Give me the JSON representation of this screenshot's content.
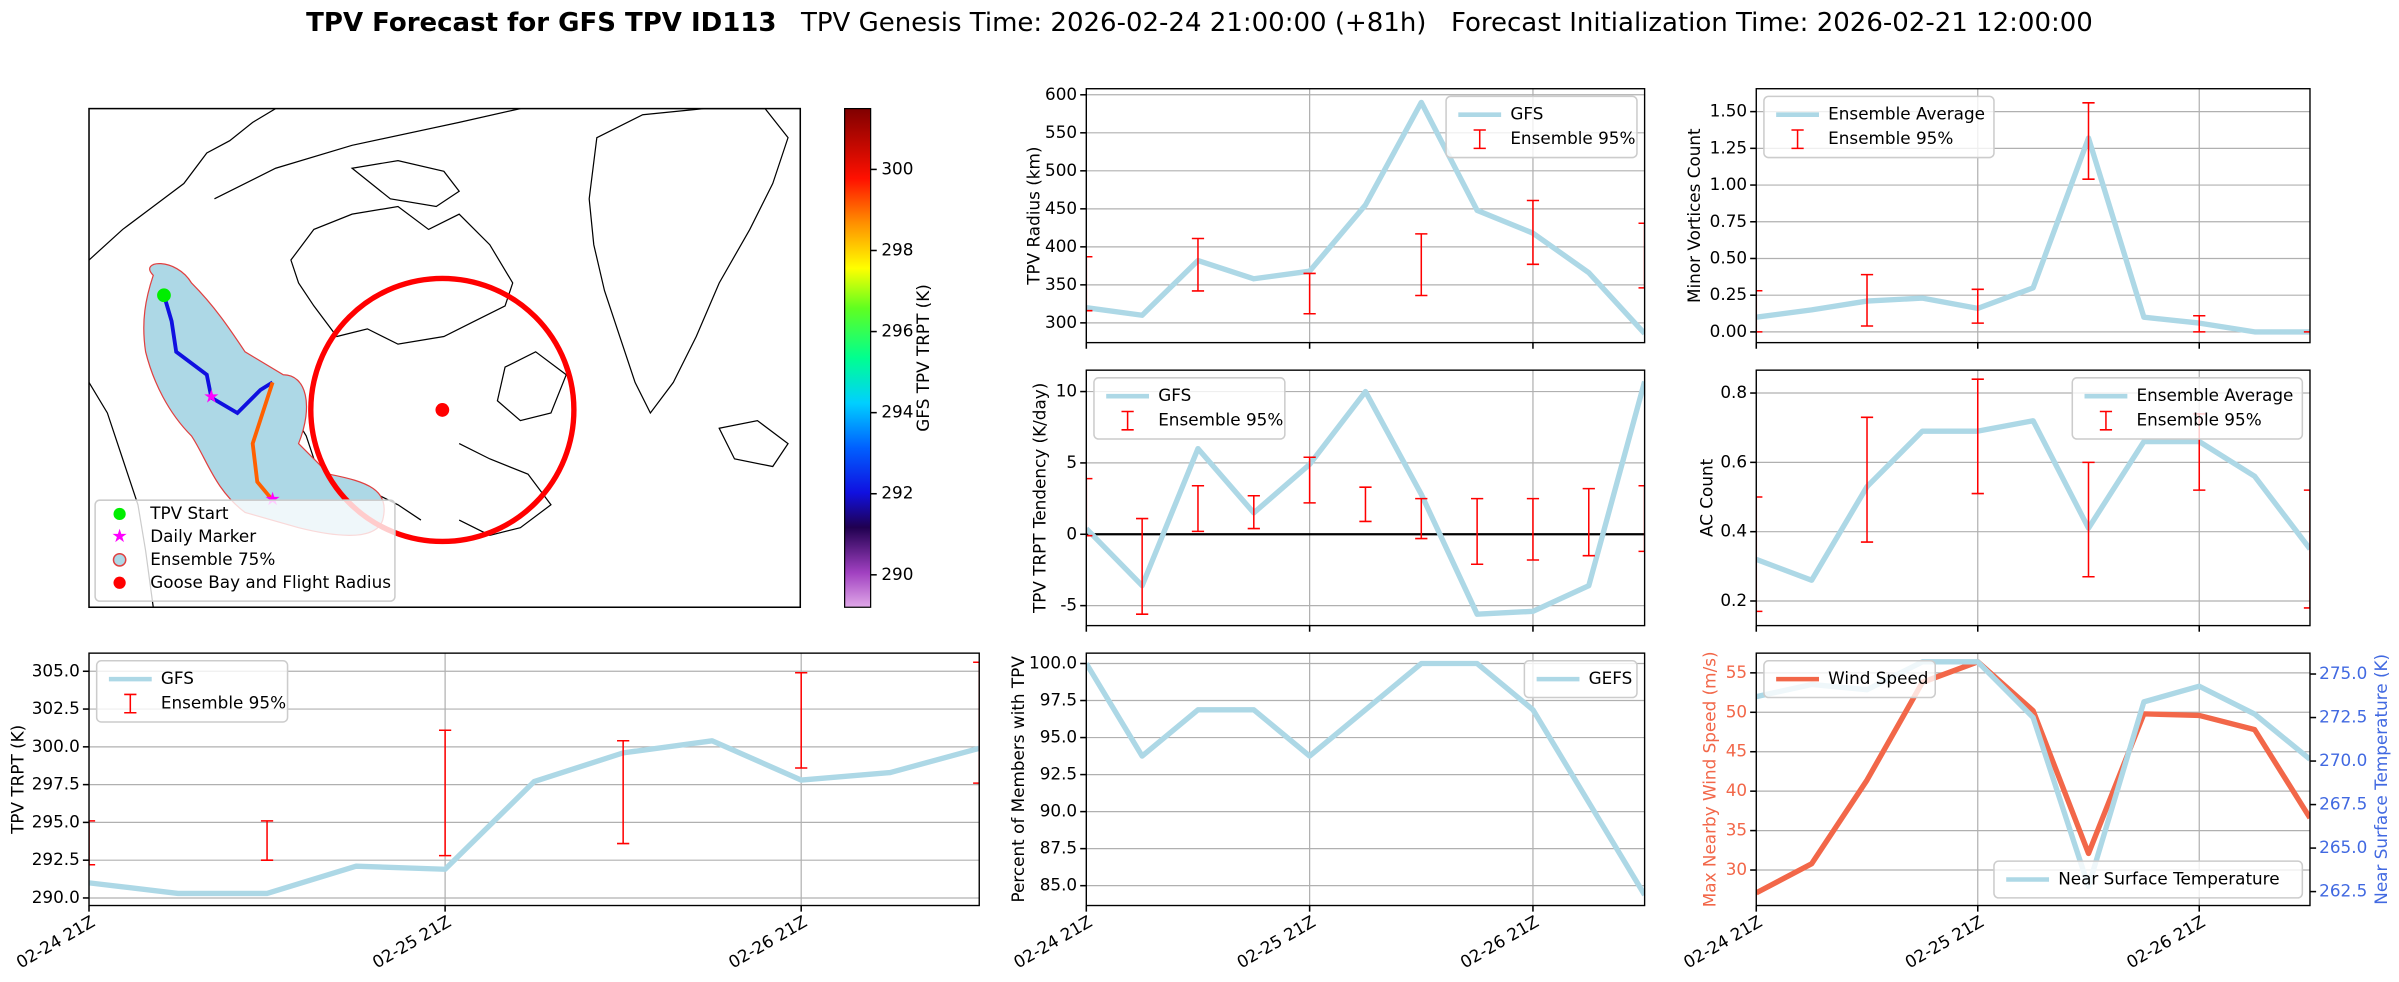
{
  "suptitle": {
    "main": "TPV Forecast for GFS TPV ID113",
    "genesis": "TPV Genesis Time: 2026-02-24 21:00:00 (+81h)",
    "init": "Forecast Initialization Time: 2026-02-21 12:00:00"
  },
  "chart_data": [
    {
      "type": "map",
      "legend_labels": [
        "TPV Start",
        "Daily Marker",
        "Ensemble 75%",
        "Goose Bay and Flight Radius"
      ],
      "colorbar_label": "GFS TPV TRPT (K)",
      "clim": [
        289.2,
        301.5
      ],
      "cticks": [
        290,
        292,
        294,
        296,
        298,
        300
      ]
    },
    {
      "type": "line",
      "ylabel": "TPV Radius (km)",
      "sharex": 6,
      "ylim": [
        274,
        608
      ],
      "yticks": [
        300,
        350,
        400,
        450,
        500,
        550,
        600
      ],
      "grid": true,
      "legend": "upper right",
      "series": [
        {
          "name": "GFS",
          "color": "#add8e6",
          "values": [
            320,
            310,
            382,
            358,
            368,
            455,
            590,
            448,
            418,
            366,
            286
          ]
        },
        {
          "name": "Ensemble 95%",
          "color": "#ff0000",
          "kind": "errorbar",
          "low": [
            316,
            null,
            342,
            null,
            312,
            null,
            336,
            null,
            377,
            null,
            346
          ],
          "high": [
            387,
            null,
            411,
            null,
            365,
            null,
            417,
            null,
            461,
            null,
            431
          ]
        }
      ]
    },
    {
      "type": "line",
      "ylabel": "Minor Vortices Count",
      "sharex": 7,
      "ylim": [
        -0.073,
        1.656
      ],
      "yticks": [
        {
          "value": 0,
          "label": "0.00"
        },
        {
          "value": 0.25,
          "label": "0.25"
        },
        {
          "value": 0.5,
          "label": "0.50"
        },
        {
          "value": 0.75,
          "label": "0.75"
        },
        {
          "value": 1,
          "label": "1.00"
        },
        {
          "value": 1.25,
          "label": "1.25"
        },
        {
          "value": 1.5,
          "label": "1.50"
        }
      ],
      "grid": true,
      "legend": "upper left",
      "series": [
        {
          "name": "Ensemble Average",
          "color": "#add8e6",
          "values": [
            0.1,
            0.15,
            0.21,
            0.23,
            0.16,
            0.3,
            1.32,
            0.1,
            0.06,
            0,
            0
          ]
        },
        {
          "name": "Ensemble 95%",
          "color": "#ff0000",
          "kind": "errorbar",
          "low": [
            0,
            null,
            0.04,
            null,
            0.06,
            null,
            1.04,
            null,
            0,
            null,
            0
          ],
          "high": [
            0.28,
            null,
            0.39,
            null,
            0.29,
            null,
            1.56,
            null,
            0.11,
            null,
            0
          ]
        }
      ]
    },
    {
      "type": "line",
      "ylabel": "TPV TRPT Tendency (K/day)",
      "sharex": 6,
      "ylim": [
        -6.4,
        11.5
      ],
      "yticks": [
        -5,
        0,
        5,
        10
      ],
      "hline": 0,
      "grid": true,
      "legend": "upper left",
      "series": [
        {
          "name": "GFS",
          "color": "#add8e6",
          "values": [
            0.4,
            -3.6,
            6.0,
            1.5,
            4.9,
            10.0,
            2.8,
            -5.6,
            -5.4,
            -3.6,
            10.7
          ]
        },
        {
          "name": "Ensemble 95%",
          "color": "#ff0000",
          "kind": "errorbar",
          "low": [
            -0.1,
            -5.6,
            0.2,
            0.4,
            2.2,
            0.9,
            -0.3,
            -2.1,
            -1.8,
            -1.5,
            -1.2
          ],
          "high": [
            3.9,
            1.1,
            3.4,
            2.7,
            5.4,
            3.3,
            2.5,
            2.5,
            2.5,
            3.2,
            3.4
          ]
        }
      ]
    },
    {
      "type": "line",
      "ylabel": "AC Count",
      "sharex": 7,
      "ylim": [
        0.129,
        0.866
      ],
      "yticks": [
        0.2,
        0.4,
        0.6,
        0.8
      ],
      "grid": true,
      "legend": "upper right",
      "series": [
        {
          "name": "Ensemble Average",
          "color": "#add8e6",
          "values": [
            0.32,
            0.26,
            0.53,
            0.69,
            0.69,
            0.72,
            0.41,
            0.66,
            0.66,
            0.56,
            0.35
          ]
        },
        {
          "name": "Ensemble 95%",
          "color": "#ff0000",
          "kind": "errorbar",
          "low": [
            0.17,
            null,
            0.37,
            null,
            0.51,
            null,
            0.27,
            null,
            0.52,
            null,
            0.18
          ],
          "high": [
            0.5,
            null,
            0.73,
            null,
            0.84,
            null,
            0.6,
            null,
            0.74,
            null,
            0.52
          ]
        }
      ]
    },
    {
      "type": "line",
      "ylabel": "TPV TRPT (K)",
      "categories": [
        "02-24 21Z",
        null,
        null,
        null,
        "02-25 21Z",
        null,
        null,
        null,
        "02-26 21Z",
        null,
        null
      ],
      "ylim": [
        289.5,
        306.2
      ],
      "yticks": [
        {
          "value": 290,
          "label": "290.0"
        },
        {
          "value": 292.5,
          "label": "292.5"
        },
        {
          "value": 295,
          "label": "295.0"
        },
        {
          "value": 297.5,
          "label": "297.5"
        },
        {
          "value": 300,
          "label": "300.0"
        },
        {
          "value": 302.5,
          "label": "302.5"
        },
        {
          "value": 305,
          "label": "305.0"
        }
      ],
      "grid": true,
      "legend": "upper left",
      "series": [
        {
          "name": "GFS",
          "color": "#add8e6",
          "values": [
            291.0,
            290.3,
            290.3,
            292.1,
            291.9,
            297.7,
            299.6,
            300.4,
            297.8,
            298.3,
            299.9
          ]
        },
        {
          "name": "Ensemble 95%",
          "color": "#ff0000",
          "kind": "errorbar",
          "low": [
            292.2,
            null,
            292.5,
            null,
            292.8,
            null,
            293.6,
            null,
            298.6,
            null,
            297.6
          ],
          "high": [
            295.1,
            null,
            295.1,
            null,
            301.1,
            null,
            300.4,
            null,
            304.9,
            null,
            305.6
          ]
        }
      ]
    },
    {
      "type": "line",
      "ylabel": "Percent of Members with TPV",
      "categories": [
        "02-24 21Z",
        null,
        null,
        null,
        "02-25 21Z",
        null,
        null,
        null,
        "02-26 21Z",
        null,
        null
      ],
      "ylim": [
        83.66,
        100.7
      ],
      "yticks": [
        {
          "value": 85,
          "label": "85.0"
        },
        {
          "value": 87.5,
          "label": "87.5"
        },
        {
          "value": 90,
          "label": "90.0"
        },
        {
          "value": 92.5,
          "label": "92.5"
        },
        {
          "value": 95,
          "label": "95.0"
        },
        {
          "value": 97.5,
          "label": "97.5"
        },
        {
          "value": 100,
          "label": "100.0"
        }
      ],
      "grid": true,
      "legend": "upper right",
      "series": [
        {
          "name": "GEFS",
          "color": "#add8e6",
          "values": [
            100,
            93.75,
            96.875,
            96.875,
            93.75,
            96.875,
            100,
            100,
            96.875,
            90.625,
            84.375
          ]
        }
      ]
    },
    {
      "type": "line",
      "ylabel": "Max Nearby Wind Speed (m/s)",
      "ylabel_color": "#f26749",
      "y2label": "Near Surface Temperature (K)",
      "y2label_color": "#4169e1",
      "categories": [
        "02-24 21Z",
        null,
        null,
        null,
        "02-25 21Z",
        null,
        null,
        null,
        "02-26 21Z",
        null,
        null
      ],
      "ylim": [
        25.5,
        57.5
      ],
      "yticks": [
        30,
        35,
        40,
        45,
        50,
        55
      ],
      "y2lim": [
        261.7,
        276.2
      ],
      "y2ticks": [
        {
          "value": 262.5,
          "label": "262.5"
        },
        {
          "value": 265,
          "label": "265.0"
        },
        {
          "value": 267.5,
          "label": "267.5"
        },
        {
          "value": 270,
          "label": "270.0"
        },
        {
          "value": 272.5,
          "label": "272.5"
        },
        {
          "value": 275,
          "label": "275.0"
        }
      ],
      "grid": true,
      "series": [
        {
          "name": "Wind Speed",
          "color": "#f26749",
          "legend_loc": "upper left",
          "values": [
            27.1,
            30.8,
            41.4,
            53.8,
            56.4,
            50.2,
            32.1,
            49.8,
            49.6,
            47.8,
            36.6
          ]
        },
        {
          "name": "Near Surface Temperature",
          "color": "#add8e6",
          "axis": "y2",
          "legend_loc": "lower right",
          "values": [
            273.7,
            274.4,
            274.1,
            275.7,
            275.7,
            272.5,
            262.8,
            273.4,
            274.3,
            272.7,
            270.1
          ]
        }
      ]
    }
  ]
}
